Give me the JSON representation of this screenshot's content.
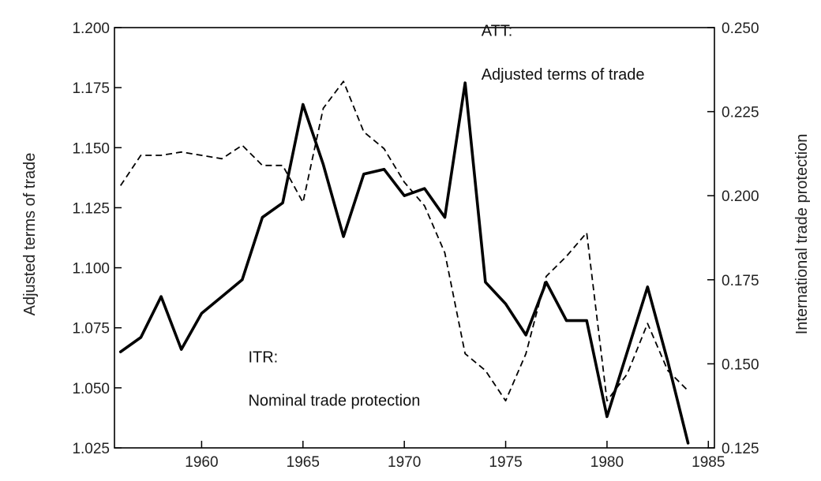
{
  "chart_data": {
    "type": "line",
    "x_range": [
      1955.7,
      1985.3
    ],
    "x_ticks": [
      1960,
      1965,
      1970,
      1975,
      1980,
      1985
    ],
    "x_tick_labels": [
      "1960",
      "1965",
      "1970",
      "1975",
      "1980",
      "1985"
    ],
    "ylabel_left": "Adjusted terms of trade",
    "ylim_left": [
      1.025,
      1.2
    ],
    "yticks_left": [
      "1.200",
      "1.175",
      "1.150",
      "1.125",
      "1.100",
      "1.075",
      "1.050",
      "1.025"
    ],
    "ylabel_right": "International trade protection",
    "ylim_right": [
      0.125,
      0.25
    ],
    "yticks_right": [
      "0.250",
      "0.225",
      "0.200",
      "0.175",
      "0.150",
      "0.125"
    ],
    "grid": false,
    "series": [
      {
        "name": "ATT",
        "axis": "left",
        "style": "solid",
        "color": "#000000",
        "x": [
          1956,
          1957,
          1958,
          1959,
          1960,
          1961,
          1962,
          1963,
          1964,
          1965,
          1966,
          1967,
          1968,
          1969,
          1970,
          1971,
          1972,
          1973,
          1974,
          1975,
          1976,
          1977,
          1978,
          1979,
          1980,
          1981,
          1982,
          1983,
          1984
        ],
        "values": [
          1.065,
          1.071,
          1.088,
          1.066,
          1.081,
          1.088,
          1.095,
          1.121,
          1.127,
          1.168,
          1.143,
          1.113,
          1.139,
          1.141,
          1.13,
          1.133,
          1.121,
          1.177,
          1.094,
          1.085,
          1.072,
          1.094,
          1.078,
          1.078,
          1.038,
          1.065,
          1.092,
          1.061,
          1.027
        ]
      },
      {
        "name": "ITR",
        "axis": "right",
        "style": "dashed",
        "color": "#000000",
        "x": [
          1956,
          1957,
          1958,
          1959,
          1960,
          1961,
          1962,
          1963,
          1964,
          1965,
          1966,
          1967,
          1968,
          1969,
          1970,
          1971,
          1972,
          1973,
          1974,
          1975,
          1976,
          1977,
          1978,
          1979,
          1980,
          1981,
          1982,
          1983,
          1984
        ],
        "values": [
          0.203,
          0.212,
          0.212,
          0.213,
          0.212,
          0.211,
          0.215,
          0.209,
          0.209,
          0.198,
          0.226,
          0.234,
          0.219,
          0.214,
          0.204,
          0.197,
          0.183,
          0.153,
          0.148,
          0.139,
          0.153,
          0.176,
          0.182,
          0.189,
          0.139,
          0.147,
          0.162,
          0.148,
          0.142
        ]
      }
    ],
    "annotations": [
      {
        "id": "att",
        "lines": [
          "ATT:",
          "Adjusted terms of trade"
        ],
        "x": 1973.8,
        "y_right": 0.2475,
        "line_step_right": 0.013
      },
      {
        "id": "itr",
        "lines": [
          "ITR:",
          "Nominal trade protection"
        ],
        "x": 1962.3,
        "y_right": 0.1505,
        "line_step_right": 0.013
      }
    ]
  }
}
